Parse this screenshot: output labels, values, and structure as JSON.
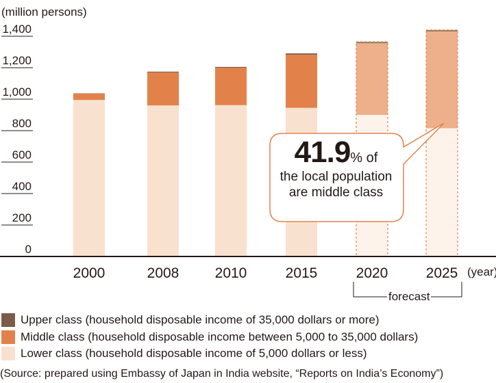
{
  "chart_data": {
    "type": "bar",
    "stacked": true,
    "unit_label": "(million persons)",
    "categories": [
      "2000",
      "2008",
      "2010",
      "2015",
      "2020",
      "2025"
    ],
    "x_unit": "(year)",
    "ylim": [
      0,
      1400
    ],
    "yticks": [
      "0",
      "200",
      "400",
      "600",
      "800",
      "1,000",
      "1,200",
      "1,400"
    ],
    "series": [
      {
        "name": "Lower class (household disposable income of 5,000 dollars or less)",
        "color": "#F9E1CF",
        "values": [
          995,
          960,
          962,
          945,
          900,
          815
        ]
      },
      {
        "name": "Middle class (household disposable income between 5,000 to 35,000 dollars)",
        "color": "#E2824A",
        "values": [
          40,
          210,
          238,
          338,
          455,
          615
        ]
      },
      {
        "name": "Upper class (household disposable income of 35,000 dollars or more)",
        "color": "#7A5C48",
        "values": [
          2,
          5,
          5,
          8,
          10,
          10
        ]
      }
    ],
    "forecast_categories": [
      "2020",
      "2025"
    ],
    "forecast_label": "forecast",
    "forecast_colors": {
      "lower": "#FDF3EB",
      "middle": "#EDB08A",
      "upper": "#9E7C64",
      "border": "#E2824A"
    },
    "legend_order": [
      "Upper class (household disposable income of 35,000 dollars or more)",
      "Middle class (household disposable income between 5,000 to 35,000 dollars)",
      "Lower class (household disposable income of 5,000 dollars or less)"
    ],
    "annotation": {
      "value": "41.9",
      "suffix": "% of",
      "line2": "the local population",
      "line3": "are middle class"
    },
    "source": "(Source: prepared using Embassy of Japan in India website, “Reports on India’s Economy”)"
  }
}
